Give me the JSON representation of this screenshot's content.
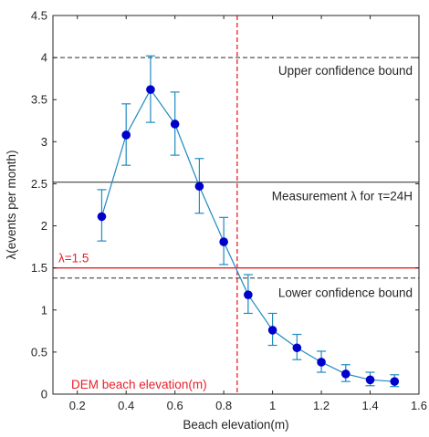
{
  "chart_data": {
    "type": "line",
    "xlabel": "Beach elevation(m)",
    "ylabel": "λ(events per month)",
    "xlim": [
      0.1,
      1.6
    ],
    "ylim": [
      0,
      4.5
    ],
    "xticks": [
      "0.2",
      "0.4",
      "0.6",
      "0.8",
      "1",
      "1.2",
      "1.4",
      "1.6"
    ],
    "yticks": [
      "0",
      "0.5",
      "1",
      "1.5",
      "2",
      "2.5",
      "3",
      "3.5",
      "4",
      "4.5"
    ],
    "series": [
      {
        "x": [
          0.3,
          0.4,
          0.5,
          0.6,
          0.7,
          0.8,
          0.9,
          1.0,
          1.1,
          1.2,
          1.3,
          1.4,
          1.5
        ],
        "y": [
          2.11,
          3.08,
          3.62,
          3.21,
          2.47,
          1.81,
          1.18,
          0.76,
          0.55,
          0.38,
          0.24,
          0.17,
          0.15
        ],
        "lower": [
          1.82,
          2.72,
          3.23,
          2.84,
          2.15,
          1.54,
          0.96,
          0.58,
          0.41,
          0.26,
          0.15,
          0.1,
          0.09
        ],
        "upper": [
          2.43,
          3.45,
          4.02,
          3.59,
          2.8,
          2.1,
          1.42,
          0.96,
          0.71,
          0.51,
          0.35,
          0.26,
          0.23
        ],
        "color": "#0000cc",
        "line_color": "#1f8ac0"
      }
    ],
    "reference_lines": {
      "upper_bound": {
        "y": 4.0,
        "label": "Upper confidence bound",
        "color": "#555555",
        "style": "dashed"
      },
      "measurement": {
        "y": 2.52,
        "label": "Measurement λ for τ=24H",
        "color": "#555555",
        "style": "solid"
      },
      "lambda_line": {
        "y": 1.5,
        "label": "λ=1.5",
        "color": "#e8202a",
        "style": "solid"
      },
      "lower_bound": {
        "y": 1.38,
        "label": "Lower confidence bound",
        "color": "#555555",
        "style": "dashed"
      },
      "dem_elevation": {
        "x": 0.855,
        "label": "DEM beach elevation(m)",
        "color": "#e8202a",
        "style": "dashed"
      }
    },
    "grid": false
  }
}
